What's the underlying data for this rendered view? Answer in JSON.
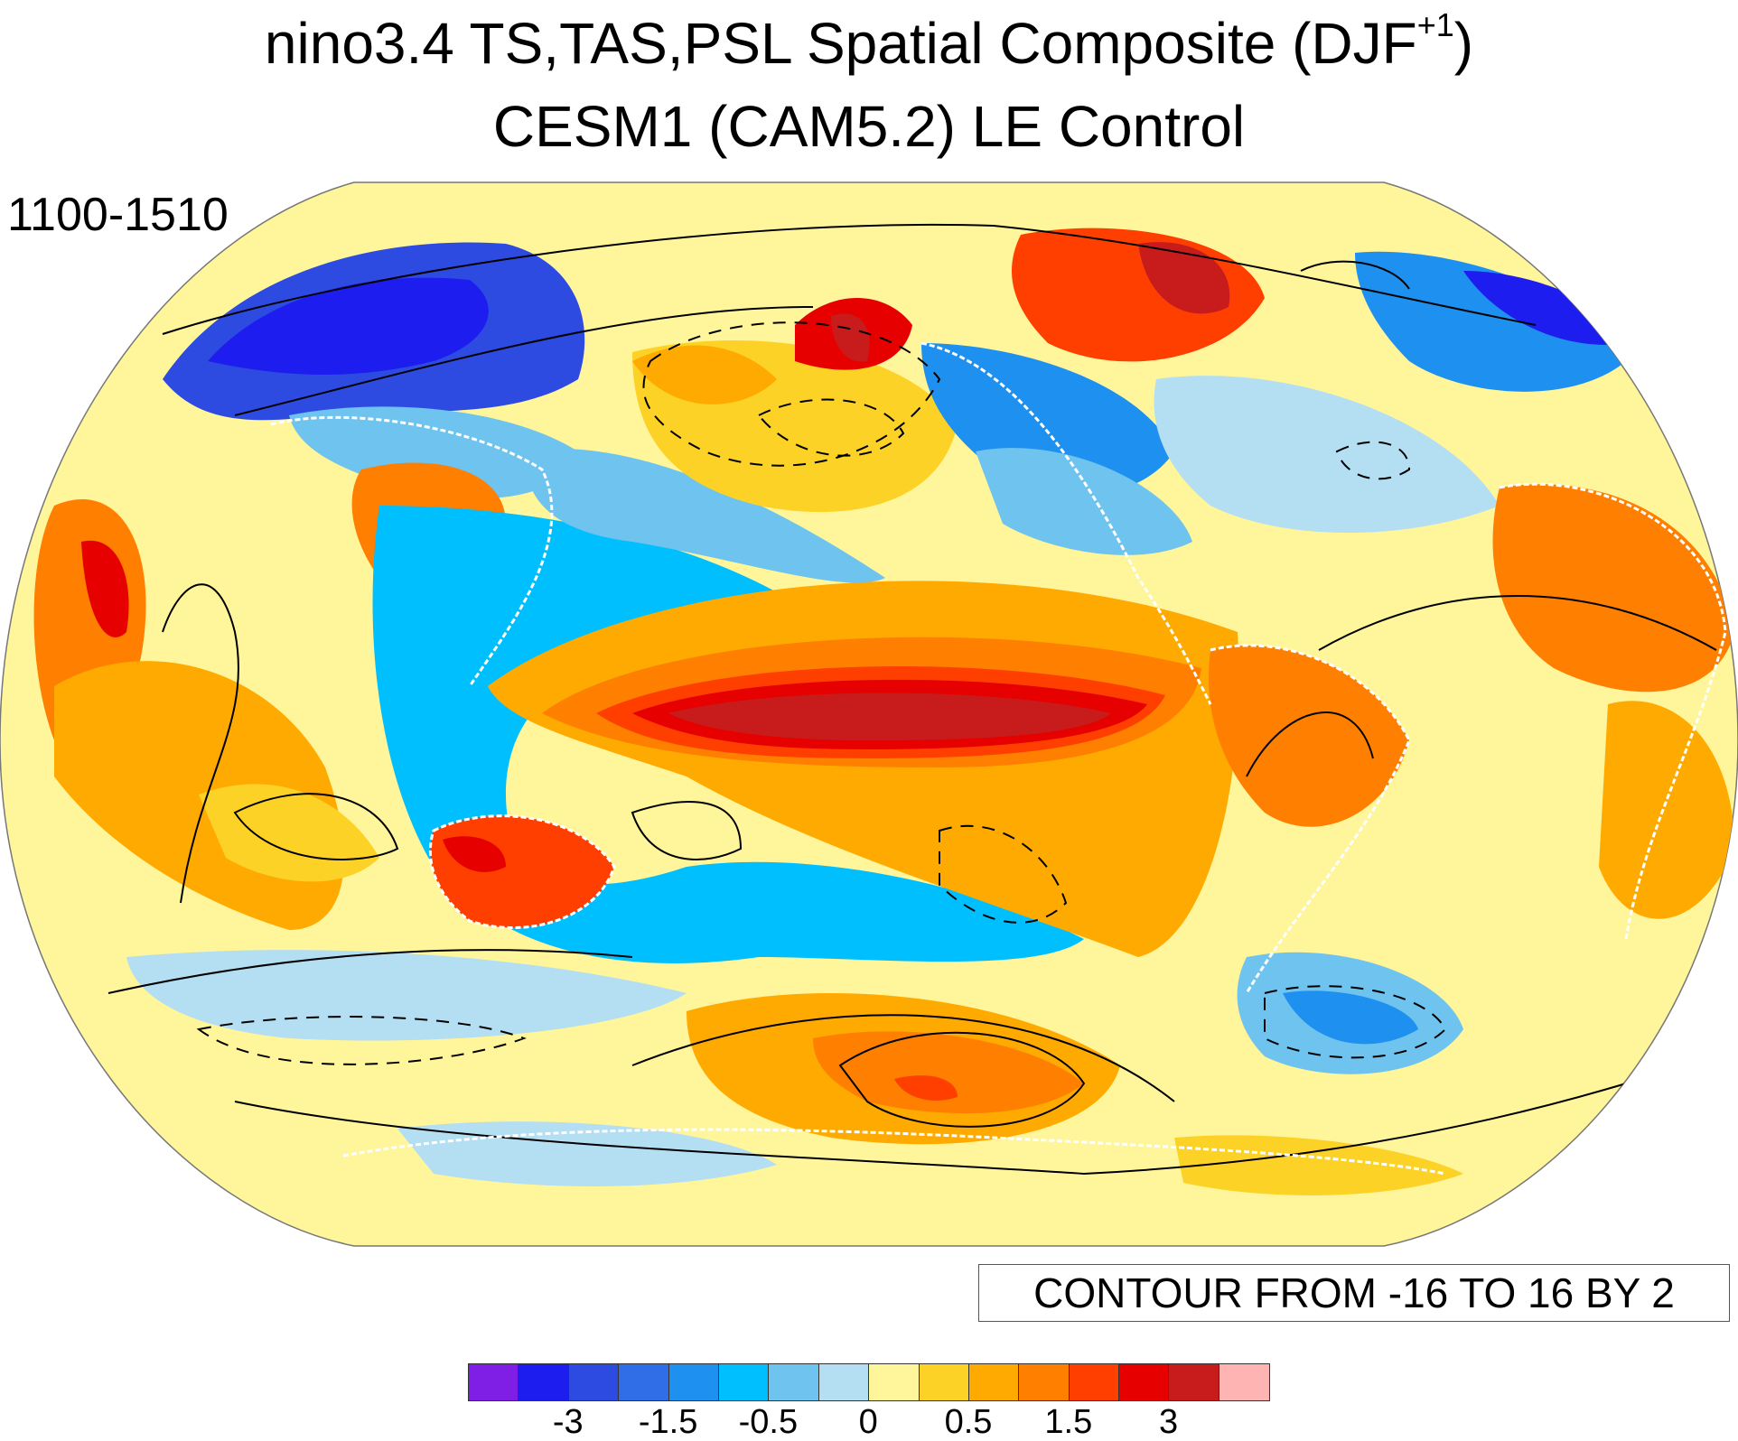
{
  "title_main": "nino3.4 TS,TAS,PSL Spatial Composite (DJF",
  "title_sup": "+1",
  "title_close": ")",
  "subtitle": "CESM1 (CAM5.2) LE Control",
  "period": "1100-1510",
  "contour_info": "CONTOUR FROM -16 TO 16 BY 2",
  "colorbar": {
    "colors": [
      "#7f1fe6",
      "#1d1def",
      "#2d4be0",
      "#2f6ee6",
      "#1e90ef",
      "#00bfff",
      "#6ec3ef",
      "#b4def2",
      "#fff59b",
      "#fdd226",
      "#ffaa00",
      "#ff7f00",
      "#ff3f00",
      "#e60000",
      "#c81c1c",
      "#ffb4b4"
    ],
    "labels": [
      "-3",
      "-1.5",
      "-0.5",
      "0",
      "0.5",
      "1.5",
      "3"
    ],
    "label_boundary_index": [
      2,
      4,
      6,
      8,
      10,
      12,
      14
    ]
  },
  "map": {
    "projection": "Robinson",
    "center_longitude": 180,
    "fill_variable": "TS/TAS anomaly",
    "contour_variable": "PSL anomaly",
    "negative_contours": "dashed",
    "positive_contours": "solid"
  }
}
